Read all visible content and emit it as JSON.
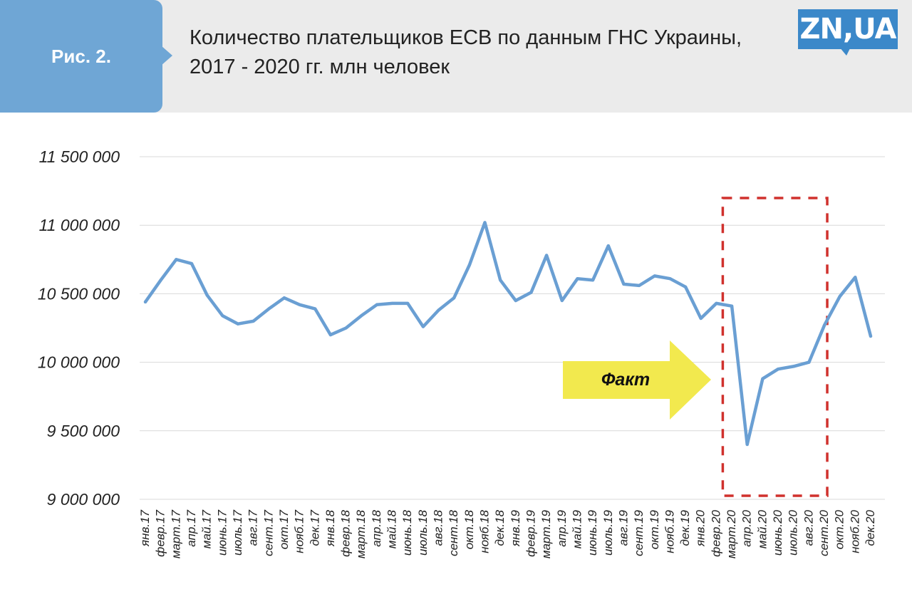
{
  "header": {
    "badge": "Рис. 2.",
    "title_line1": "Количество плательщиков ЕСВ по данным ГНС Украины,",
    "title_line2": "2017 - 2020 гг. млн человек",
    "logo": "ZN,UA"
  },
  "colors": {
    "line": "#6a9fd3",
    "grid": "#d9d9d9",
    "highlight_box": "#d0312d",
    "arrow": "#f2e94e",
    "badge": "#6fa6d5",
    "header_bg": "#ebebeb",
    "logo": "#3b88c9"
  },
  "chart_data": {
    "type": "line",
    "title": "Количество плательщиков ЕСВ по данным ГНС Украины, 2017 - 2020 гг. млн человек",
    "ylim": [
      9000000,
      11500000
    ],
    "yticks": [
      9000000,
      9500000,
      10000000,
      10500000,
      11000000,
      11500000
    ],
    "ytick_labels": [
      "9 000 000",
      "9 500 000",
      "10 000 000",
      "10 500 000",
      "11 000 000",
      "11 500 000"
    ],
    "grid": true,
    "categories": [
      "янв.17",
      "февр.17",
      "март.17",
      "апр.17",
      "май.17",
      "июнь.17",
      "июль.17",
      "авг.17",
      "сент.17",
      "окт.17",
      "нояб.17",
      "дек.17",
      "янв.18",
      "февр.18",
      "март.18",
      "апр.18",
      "май.18",
      "июнь.18",
      "июль.18",
      "авг.18",
      "сент.18",
      "окт.18",
      "нояб.18",
      "дек.18",
      "янв.19",
      "февр.19",
      "март.19",
      "апр.19",
      "май.19",
      "июнь.19",
      "июль.19",
      "авг.19",
      "сент.19",
      "окт.19",
      "нояб.19",
      "дек.19",
      "янв.20",
      "февр.20",
      "март.20",
      "апр.20",
      "май.20",
      "июнь.20",
      "июль.20",
      "авг.20",
      "сент.20",
      "окт.20",
      "нояб.20",
      "дек.20"
    ],
    "series": [
      {
        "values": [
          10440000,
          10600000,
          10750000,
          10720000,
          10490000,
          10340000,
          10280000,
          10300000,
          10390000,
          10470000,
          10420000,
          10390000,
          10200000,
          10250000,
          10340000,
          10420000,
          10430000,
          10430000,
          10260000,
          10380000,
          10470000,
          10710000,
          11020000,
          10600000,
          10450000,
          10510000,
          10780000,
          10450000,
          10610000,
          10600000,
          10850000,
          10570000,
          10560000,
          10630000,
          10610000,
          10550000,
          10320000,
          10430000,
          10410000,
          9400000,
          9880000,
          9950000,
          9970000,
          10000000,
          10270000,
          10480000,
          10620000,
          10190000
        ]
      }
    ],
    "annotations": [
      {
        "type": "arrow",
        "text": "Факт"
      },
      {
        "type": "dashed-box",
        "from_category": "февр.20",
        "to_category": "сент.20"
      }
    ]
  }
}
